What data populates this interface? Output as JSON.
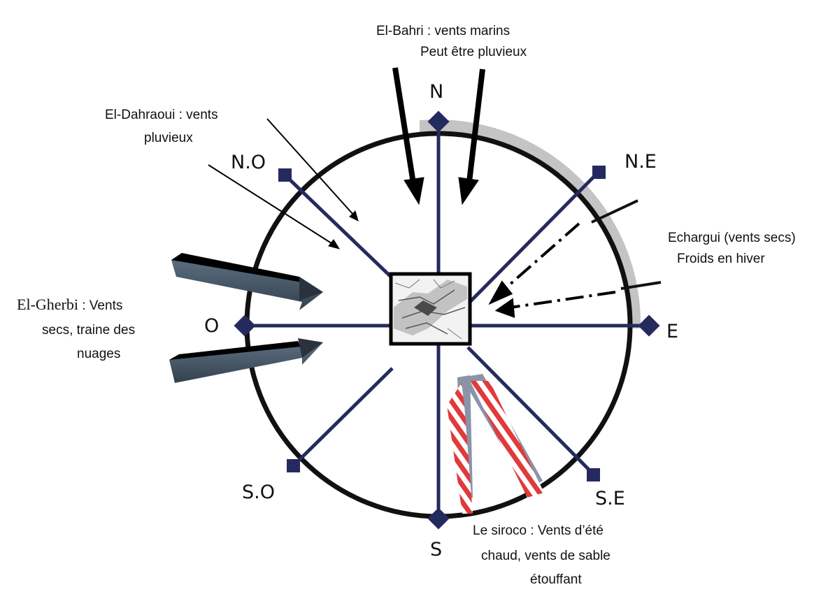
{
  "directions": {
    "north": "N",
    "north_east": "N.E",
    "east": "E",
    "south_east": "S.E",
    "south": "S",
    "south_west": "S.O",
    "west": "O",
    "north_west": "N.O"
  },
  "winds": {
    "bahri": {
      "line1": "El-Bahri : vents marins",
      "line2": "Peut être pluvieux"
    },
    "dahraoui": {
      "line1": "El-Dahraoui : vents",
      "line2": "pluvieux"
    },
    "echargui": {
      "line1": "Echargui (vents secs)",
      "line2": "Froids en hiver"
    },
    "gherbi": {
      "name": "El-Gherbi",
      "line1_rest": " : Vents",
      "line2": "secs, traine des",
      "line3": "nuages"
    },
    "siroco": {
      "line1": "Le siroco : Vents d’été",
      "line2": "chaud, vents de sable",
      "line3": "étouffant"
    }
  },
  "colors": {
    "spoke": "#252a5e",
    "ring": "#111111",
    "shadow": "#c4c4c4",
    "gherbi_arrow": "#4b5d6e",
    "siroco_stripe": "#e03a3a",
    "siroco_shadow": "#8a93a8"
  }
}
